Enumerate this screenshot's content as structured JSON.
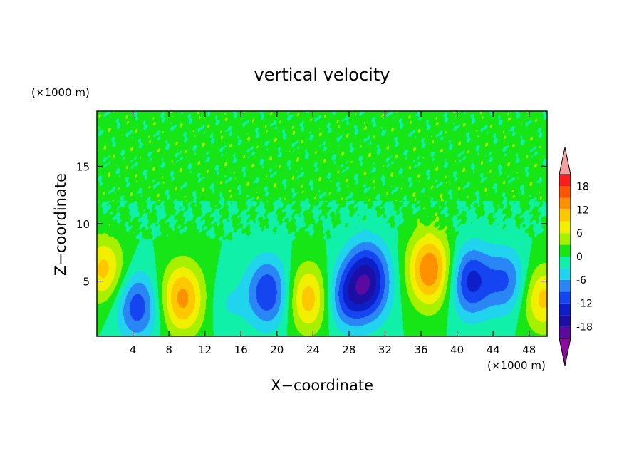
{
  "chart_data": {
    "type": "heatmap",
    "title": "vertical velocity",
    "xlabel": "X−coordinate",
    "ylabel": "Z−coordinate",
    "x_unit": "(×1000 m)",
    "y_unit": "(×1000 m)",
    "xlim": [
      0,
      50
    ],
    "ylim": [
      0.2,
      19.8
    ],
    "x_ticks": [
      4,
      8,
      12,
      16,
      20,
      24,
      28,
      32,
      36,
      40,
      44,
      48
    ],
    "y_ticks": [
      5,
      10,
      15
    ],
    "colorbar": {
      "ticks": [
        18,
        12,
        6,
        0,
        -6,
        -12,
        -18
      ],
      "levels": [
        {
          "lo": -21,
          "hi": -18,
          "color": "#5a0a9e"
        },
        {
          "lo": -18,
          "hi": -15,
          "color": "#1c0fa6"
        },
        {
          "lo": -15,
          "hi": -12,
          "color": "#0d1fc8"
        },
        {
          "lo": -12,
          "hi": -9,
          "color": "#1545f0"
        },
        {
          "lo": -9,
          "hi": -6,
          "color": "#2a86f5"
        },
        {
          "lo": -6,
          "hi": -3,
          "color": "#20d4ee"
        },
        {
          "lo": -3,
          "hi": 0,
          "color": "#10f0a8"
        },
        {
          "lo": 0,
          "hi": 3,
          "color": "#16e516"
        },
        {
          "lo": 3,
          "hi": 6,
          "color": "#a6f000"
        },
        {
          "lo": 6,
          "hi": 9,
          "color": "#f0f000"
        },
        {
          "lo": 9,
          "hi": 12,
          "color": "#ffc800"
        },
        {
          "lo": 12,
          "hi": 15,
          "color": "#ff9000"
        },
        {
          "lo": 15,
          "hi": 18,
          "color": "#ff5400"
        },
        {
          "lo": 18,
          "hi": 21,
          "color": "#ff1e1e"
        }
      ],
      "over_color": "#f5a0a0",
      "under_color": "#8c0a9e"
    },
    "features": [
      {
        "x": 0.8,
        "z": 6.0,
        "value": 10
      },
      {
        "x": 4.5,
        "z": 2.8,
        "value": -11
      },
      {
        "x": 9.5,
        "z": 3.5,
        "value": 13
      },
      {
        "x": 14.5,
        "z": 3.0,
        "value": -3
      },
      {
        "x": 19.0,
        "z": 4.0,
        "value": -12
      },
      {
        "x": 23.5,
        "z": 3.5,
        "value": 11
      },
      {
        "x": 27.5,
        "z": 3.5,
        "value": -8
      },
      {
        "x": 30.0,
        "z": 5.0,
        "value": -17
      },
      {
        "x": 37.0,
        "z": 6.0,
        "value": 15
      },
      {
        "x": 41.5,
        "z": 5.0,
        "value": -13
      },
      {
        "x": 45.5,
        "z": 5.0,
        "value": -9
      },
      {
        "x": 49.5,
        "z": 3.5,
        "value": 10
      }
    ]
  }
}
